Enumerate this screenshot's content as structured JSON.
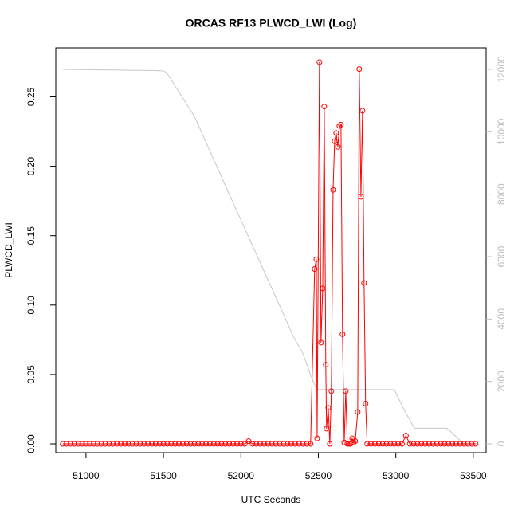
{
  "chart_data": {
    "type": "line",
    "title": "ORCAS RF13 PLWCD_LWI (Log)",
    "x_label": "UTC Seconds",
    "y_label": "PLWCD_LWI",
    "xlim": [
      50805,
      53583
    ],
    "xticks": [
      51000,
      51500,
      52000,
      52500,
      53000,
      53500
    ],
    "ylim": [
      -0.0063,
      0.2853
    ],
    "yticks": [
      {
        "value": 0,
        "label": "0.00"
      },
      0.05,
      {
        "value": 0.1,
        "label": "0.10"
      },
      0.15,
      {
        "value": 0.2,
        "label": "0.20"
      },
      0.25
    ],
    "y2lim": [
      -281,
      12689
    ],
    "y2ticks": [
      0,
      2000,
      4000,
      6000,
      8000,
      10000,
      12000
    ],
    "y2_color": "#bebebe",
    "series": [
      {
        "color": "#ff0000",
        "markers": true,
        "x": [
          50850,
          50875,
          50900,
          50925,
          50950,
          50975,
          51000,
          51025,
          51050,
          51075,
          51100,
          51125,
          51150,
          51175,
          51200,
          51225,
          51250,
          51275,
          51300,
          51325,
          51350,
          51375,
          51400,
          51425,
          51450,
          51475,
          51500,
          51525,
          51550,
          51575,
          51600,
          51625,
          51650,
          51675,
          51700,
          51725,
          51750,
          51775,
          51800,
          51825,
          51850,
          51875,
          51900,
          51925,
          51950,
          51975,
          52000,
          52025,
          52050,
          52075,
          52100,
          52125,
          52150,
          52175,
          52200,
          52225,
          52250,
          52275,
          52300,
          52325,
          52350,
          52375,
          52400,
          52425,
          52450,
          52476,
          52487,
          52492,
          52507,
          52517,
          52528,
          52538,
          52548,
          52553,
          52564,
          52574,
          52584,
          52595,
          52605,
          52615,
          52626,
          52636,
          52646,
          52656,
          52667,
          52677,
          52687,
          52697,
          52708,
          52718,
          52728,
          52738,
          52754,
          52764,
          52775,
          52785,
          52795,
          52805,
          52815,
          52840,
          52865,
          52890,
          52915,
          52940,
          52965,
          52990,
          53015,
          53040,
          53065,
          53090,
          53115,
          53140,
          53165,
          53190,
          53215,
          53240,
          53265,
          53290,
          53315,
          53340,
          53365,
          53390,
          53415,
          53440,
          53465,
          53490,
          53515
        ],
        "values": [
          0,
          0,
          0,
          0,
          0,
          0,
          0,
          0,
          0,
          0,
          0,
          0,
          0,
          0,
          0,
          0,
          0,
          0,
          0,
          0,
          0,
          0,
          0,
          0,
          0,
          0,
          0,
          0,
          0,
          0,
          0,
          0,
          0,
          0,
          0,
          0,
          0,
          0,
          0,
          0,
          0,
          0,
          0,
          0,
          0,
          0,
          0,
          0,
          0.002,
          0,
          0,
          0,
          0,
          0,
          0,
          0,
          0,
          0,
          0,
          0,
          0,
          0,
          0,
          0,
          0,
          0.126,
          0.133,
          0.004,
          0.275,
          0.073,
          0.112,
          0.243,
          0.057,
          0.011,
          0.026,
          0,
          0.038,
          0.183,
          0.218,
          0.224,
          0.214,
          0.229,
          0.23,
          0.079,
          0.001,
          0.038,
          0,
          0,
          0,
          0.004,
          0.001,
          0.002,
          0.023,
          0.27,
          0.178,
          0.24,
          0.116,
          0.029,
          0,
          0,
          0,
          0,
          0,
          0,
          0,
          0,
          0,
          0,
          0.006,
          0,
          0,
          0,
          0,
          0,
          0,
          0,
          0,
          0,
          0,
          0,
          0,
          0,
          0,
          0,
          0,
          0,
          0
        ]
      },
      {
        "color": "#c8c8c8",
        "axis": "y2",
        "markers": false,
        "x": [
          50850,
          51450,
          51500,
          51520,
          51700,
          51900,
          52100,
          52300,
          52340,
          52400,
          52450,
          52480,
          52500,
          52990,
          53050,
          53120,
          53330,
          53440,
          53520
        ],
        "values": [
          12000,
          11960,
          11950,
          11900,
          10493,
          8272,
          6076,
          3880,
          3420,
          2900,
          2200,
          1850,
          1740,
          1740,
          1120,
          500,
          500,
          0,
          0
        ]
      }
    ]
  }
}
